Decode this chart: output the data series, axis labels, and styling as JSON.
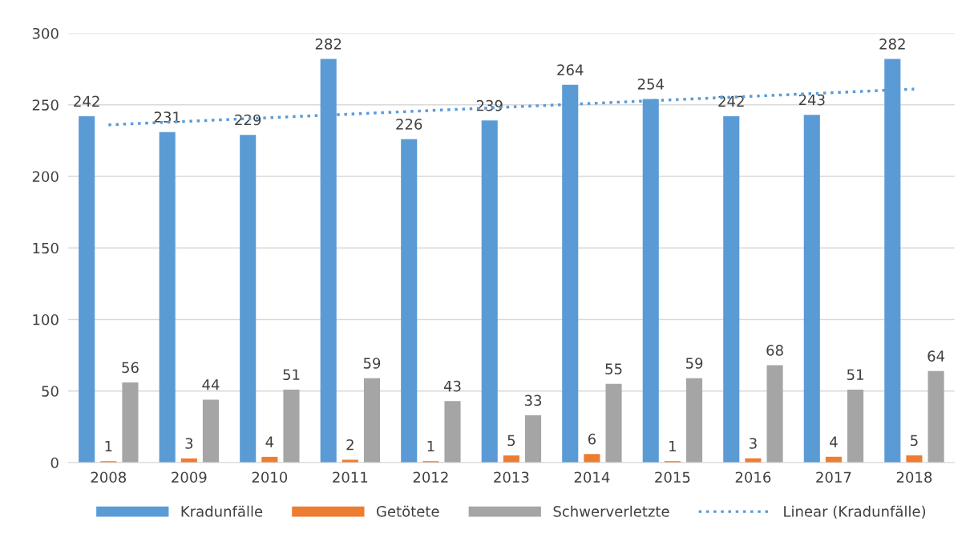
{
  "chart_data": {
    "type": "bar",
    "categories": [
      "2008",
      "2009",
      "2010",
      "2011",
      "2012",
      "2013",
      "2014",
      "2015",
      "2016",
      "2017",
      "2018"
    ],
    "series": [
      {
        "name": "Kradunfälle",
        "color": "#5b9bd5",
        "values": [
          242,
          231,
          229,
          282,
          226,
          239,
          264,
          254,
          242,
          243,
          282
        ],
        "value_labels": [
          "242",
          "231",
          "229",
          "282",
          "226",
          "239",
          "264",
          "254",
          "242",
          "243",
          "282"
        ]
      },
      {
        "name": "Getötete",
        "color": "#ed7d31",
        "values": [
          1,
          3,
          4,
          2,
          1,
          5,
          6,
          1,
          3,
          4,
          5
        ],
        "value_labels": [
          "1",
          "3",
          "4",
          "2",
          "1",
          "5",
          "6",
          "1",
          "3",
          "4",
          "5"
        ]
      },
      {
        "name": "Schwerverletzte",
        "color": "#a5a5a5",
        "values": [
          56,
          44,
          51,
          59,
          43,
          33,
          55,
          59,
          68,
          51,
          64
        ],
        "value_labels": [
          "56",
          "44",
          "51",
          "59",
          "43",
          "33",
          "55",
          "59",
          "68",
          "51",
          "64"
        ]
      },
      {
        "name": "Linear (Kradunfälle)",
        "color": "#5b9bd5",
        "type": "line",
        "line_style": "dotted",
        "values": [
          236,
          null,
          null,
          null,
          null,
          null,
          null,
          null,
          null,
          null,
          261
        ]
      }
    ],
    "ylim": [
      0,
      300
    ],
    "yticks": [
      0,
      50,
      100,
      150,
      200,
      250,
      300
    ],
    "grid": "y",
    "legend": "bottom"
  }
}
